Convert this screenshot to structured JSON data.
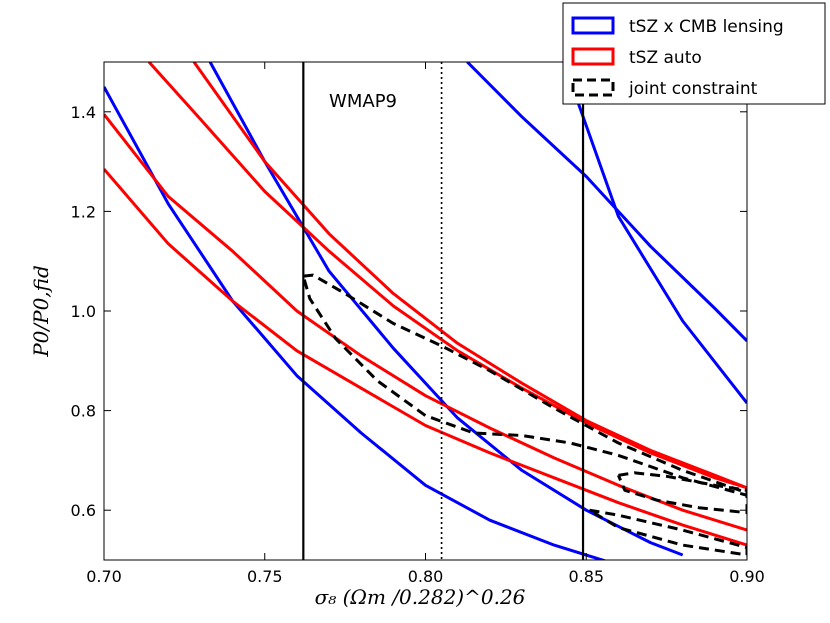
{
  "chart_data": {
    "type": "line",
    "title": "",
    "xlabel": "σ₈ (Ωm /0.282)^0.26",
    "ylabel": "P0/P0,fid",
    "xlim": [
      0.7,
      0.9
    ],
    "ylim": [
      0.5,
      1.5
    ],
    "x_ticks": [
      "0.70",
      "0.75",
      "0.80",
      "0.85",
      "0.90"
    ],
    "y_ticks": [
      "0.6",
      "0.8",
      "1.0",
      "1.2",
      "1.4"
    ],
    "grid": false,
    "legend_position": "top-right",
    "legend": [
      {
        "label": "tSZ x CMB lensing",
        "color": "#0000ff",
        "style": "solid"
      },
      {
        "label": "tSZ auto",
        "color": "#ff0000",
        "style": "solid"
      },
      {
        "label": "joint constraint",
        "color": "#000000",
        "style": "dashed"
      }
    ],
    "annotations": [
      {
        "text": "WMAP9",
        "x": 0.77,
        "y": 1.41
      }
    ],
    "reference_lines": [
      {
        "orientation": "vertical",
        "x": 0.762,
        "style": "solid",
        "color": "#000000"
      },
      {
        "orientation": "vertical",
        "x": 0.805,
        "style": "dotted",
        "color": "#000000"
      },
      {
        "orientation": "vertical",
        "x": 0.849,
        "style": "solid",
        "color": "#000000"
      }
    ],
    "series": [
      {
        "group": "tSZ x CMB lensing",
        "color": "#0000ff",
        "style": "solid",
        "x": [
          0.7,
          0.72,
          0.74,
          0.76,
          0.78,
          0.8,
          0.82,
          0.84,
          0.86,
          0.88
        ],
        "y": [
          1.45,
          1.215,
          1.02,
          0.87,
          0.755,
          0.65,
          0.58,
          0.53,
          0.49,
          0.46
        ]
      },
      {
        "group": "tSZ x CMB lensing",
        "color": "#0000ff",
        "style": "solid",
        "x": [
          0.733,
          0.75,
          0.77,
          0.79,
          0.81,
          0.83,
          0.85,
          0.87,
          0.88
        ],
        "y": [
          1.5,
          1.3,
          1.08,
          0.925,
          0.785,
          0.68,
          0.6,
          0.535,
          0.51
        ]
      },
      {
        "group": "tSZ x CMB lensing",
        "color": "#0000ff",
        "style": "solid",
        "x": [
          0.813,
          0.83,
          0.85,
          0.87,
          0.89,
          0.9
        ],
        "y": [
          1.5,
          1.39,
          1.27,
          1.13,
          1.005,
          0.94
        ]
      },
      {
        "group": "tSZ x CMB lensing",
        "color": "#0000ff",
        "style": "solid",
        "x": [
          0.843,
          0.86,
          0.88,
          0.9
        ],
        "y": [
          1.5,
          1.19,
          0.98,
          0.815
        ]
      },
      {
        "group": "tSZ auto",
        "color": "#ff0000",
        "style": "solid",
        "x": [
          0.7,
          0.72,
          0.74,
          0.76,
          0.78,
          0.8,
          0.82,
          0.84,
          0.86,
          0.88,
          0.9
        ],
        "y": [
          1.285,
          1.135,
          1.02,
          0.92,
          0.845,
          0.77,
          0.715,
          0.665,
          0.615,
          0.57,
          0.53
        ]
      },
      {
        "group": "tSZ auto",
        "color": "#ff0000",
        "style": "solid",
        "x": [
          0.7,
          0.72,
          0.74,
          0.76,
          0.78,
          0.8,
          0.82,
          0.84,
          0.86,
          0.88,
          0.9
        ],
        "y": [
          1.395,
          1.23,
          1.12,
          1.0,
          0.91,
          0.83,
          0.765,
          0.705,
          0.65,
          0.6,
          0.56
        ]
      },
      {
        "group": "tSZ auto",
        "color": "#ff0000",
        "style": "solid",
        "x": [
          0.714,
          0.73,
          0.75,
          0.77,
          0.79,
          0.81,
          0.83,
          0.85,
          0.87,
          0.89,
          0.9
        ],
        "y": [
          1.5,
          1.385,
          1.24,
          1.12,
          1.01,
          0.92,
          0.845,
          0.775,
          0.715,
          0.665,
          0.645
        ]
      },
      {
        "group": "tSZ auto",
        "color": "#ff0000",
        "style": "solid",
        "x": [
          0.728,
          0.75,
          0.77,
          0.79,
          0.81,
          0.83,
          0.85,
          0.87,
          0.89,
          0.9
        ],
        "y": [
          1.5,
          1.3,
          1.155,
          1.035,
          0.935,
          0.855,
          0.78,
          0.72,
          0.67,
          0.645
        ]
      },
      {
        "group": "joint constraint",
        "color": "#000000",
        "style": "dashed",
        "x": [
          0.762,
          0.765,
          0.775,
          0.79,
          0.805,
          0.82,
          0.84,
          0.86,
          0.88,
          0.9,
          0.9,
          0.88,
          0.86,
          0.845,
          0.83,
          0.815,
          0.8,
          0.785,
          0.772,
          0.764,
          0.762
        ],
        "y": [
          1.07,
          1.072,
          1.035,
          0.975,
          0.93,
          0.88,
          0.805,
          0.735,
          0.68,
          0.635,
          0.63,
          0.665,
          0.71,
          0.735,
          0.75,
          0.755,
          0.79,
          0.86,
          0.945,
          1.025,
          1.07
        ]
      },
      {
        "group": "joint constraint",
        "color": "#000000",
        "style": "dashed",
        "x": [
          0.851,
          0.86,
          0.88,
          0.9,
          0.9,
          0.88,
          0.86,
          0.851
        ],
        "y": [
          0.6,
          0.59,
          0.56,
          0.525,
          0.51,
          0.53,
          0.565,
          0.6
        ]
      },
      {
        "group": "joint constraint",
        "color": "#000000",
        "style": "dashed",
        "x": [
          0.86,
          0.865,
          0.875,
          0.89,
          0.9,
          0.9,
          0.885,
          0.872,
          0.862,
          0.86
        ],
        "y": [
          0.67,
          0.675,
          0.668,
          0.65,
          0.64,
          0.595,
          0.605,
          0.62,
          0.64,
          0.67
        ]
      }
    ]
  }
}
